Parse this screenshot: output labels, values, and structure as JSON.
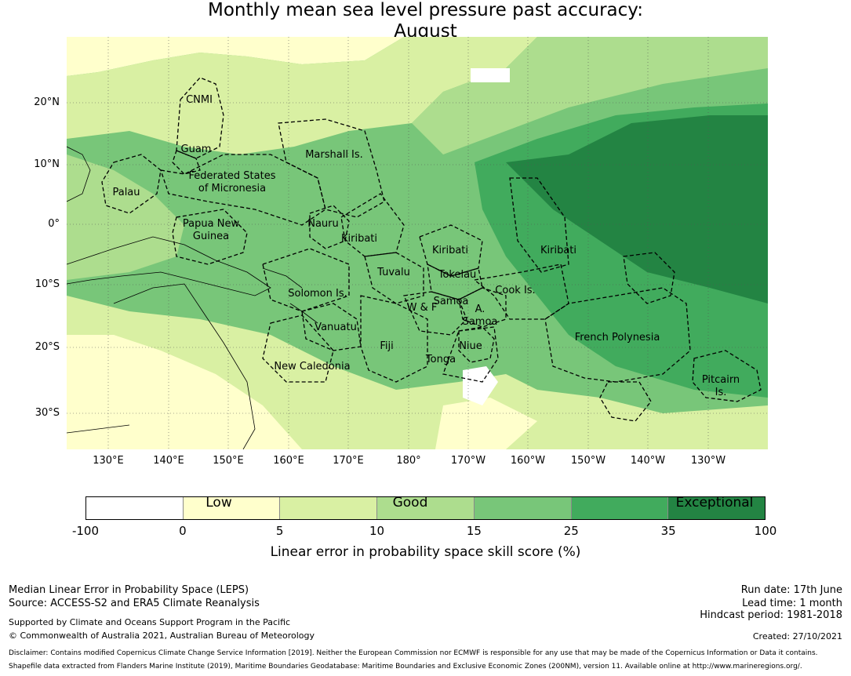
{
  "title": {
    "line1": "Monthly mean sea level pressure past accuracy:",
    "line2": "August"
  },
  "map": {
    "lat_labels": [
      "20°N",
      "10°N",
      "0°",
      "10°S",
      "20°S",
      "30°S"
    ],
    "lon_labels": [
      "130°E",
      "140°E",
      "150°E",
      "160°E",
      "170°E",
      "180°",
      "170°W",
      "160°W",
      "150°W",
      "140°W",
      "130°W"
    ],
    "regions": {
      "cnmi": "CNMI",
      "guam": "Guam",
      "marshall": "Marshall Is.",
      "fsm1": "Federated States",
      "fsm2": "of Micronesia",
      "palau": "Palau",
      "png1": "Papua New",
      "png2": "Guinea",
      "nauru": "Nauru",
      "kiribati_w": "Kiribati",
      "kiribati_c": "Kiribati",
      "kiribati_e": "Kiribati",
      "tuvalu": "Tuvalu",
      "tokelau": "Tokelau",
      "solomon": "Solomon Is.",
      "samoa": "Samoa",
      "wf": "W & F",
      "asamoa1": "A.",
      "asamoa2": "Samoa",
      "cook": "Cook Is.",
      "vanuatu": "Vanuatu",
      "fiji": "Fiji",
      "niue": "Niue",
      "tonga": "Tonga",
      "french_polynesia": "French Polynesia",
      "new_caledonia": "New Caledonia",
      "pitcairn1": "Pitcairn",
      "pitcairn2": "Is."
    },
    "colors": {
      "c0": "#ffffff",
      "c1": "#ffffcc",
      "c2": "#d9f0a3",
      "c3": "#addd8e",
      "c4": "#78c679",
      "c5": "#41ab5d",
      "c6": "#238443"
    }
  },
  "colorbar": {
    "categories": [
      "Low",
      "Good",
      "Exceptional"
    ],
    "ticks": [
      "-100",
      "0",
      "5",
      "10",
      "15",
      "25",
      "35",
      "100"
    ],
    "label": "Linear error in probability space skill score (%)"
  },
  "footer": {
    "left1": "Median Linear Error in Probability Space (LEPS)",
    "left2": "Source: ACCESS-S2 and ERA5 Climate Reanalysis",
    "left3": "Supported by Climate and Oceans Support Program in the Pacific",
    "left4": "© Commonwealth of Australia 2021, Australian Bureau of Meteorology",
    "right1": "Run date: 17th June",
    "right2": "Lead time: 1 month",
    "right3": "Hindcast period: 1981-2018",
    "right4": "Created: 27/10/2021",
    "disclaimer1": "Disclaimer: Contains modified Copernicus Climate Change Service Information [2019]. Neither the European Commission nor ECMWF is responsible for any use that may be made of the Copernicus Information or Data it contains.",
    "disclaimer2": "Shapefile data extracted from Flanders Marine Institute (2019), Maritime Boundaries Geodatabase: Maritime Boundaries and Exclusive Economic Zones (200NM), version 11. Available online at http://www.marineregions.org/."
  }
}
